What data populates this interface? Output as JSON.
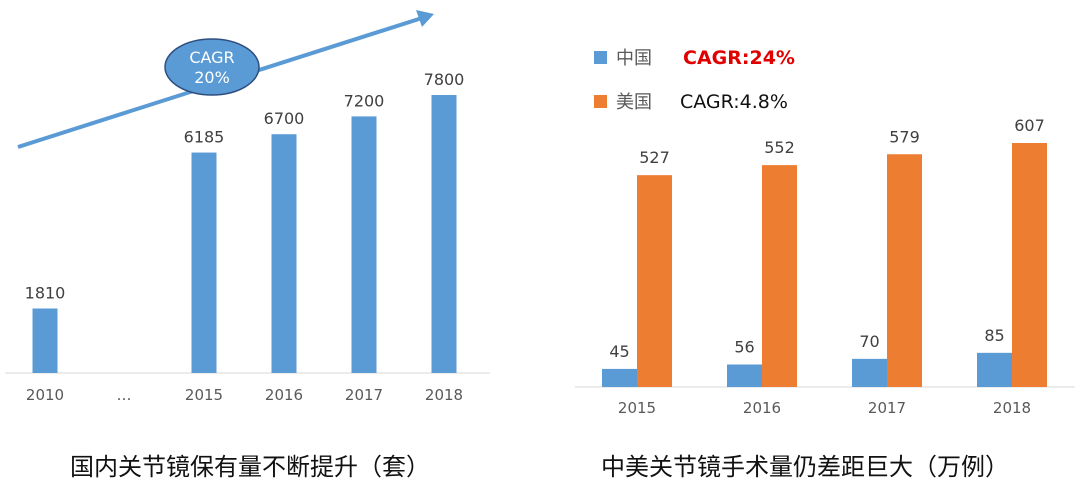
{
  "chart_data": [
    {
      "type": "bar",
      "title": "国内关节镜保有量不断提升（套）",
      "categories": [
        "2010",
        "…",
        "2015",
        "2016",
        "2017",
        "2018"
      ],
      "values": [
        1810,
        null,
        6185,
        6700,
        7200,
        7800
      ],
      "ylim": [
        0,
        8000
      ],
      "grid": false,
      "bar_color": "#5b9bd5",
      "annotation": {
        "line1": "CAGR",
        "line2": "20%"
      }
    },
    {
      "type": "bar",
      "title": "中美关节镜手术量仍差距巨大（万例）",
      "categories": [
        "2015",
        "2016",
        "2017",
        "2018"
      ],
      "series": [
        {
          "name": "中国",
          "values": [
            45,
            56,
            70,
            85
          ],
          "color": "#5b9bd5",
          "cagr": "CAGR:24%",
          "cagr_color": "#e00000"
        },
        {
          "name": "美国",
          "values": [
            527,
            552,
            579,
            607
          ],
          "color": "#ed7d31",
          "cagr": "CAGR:4.8%",
          "cagr_color": "#111111"
        }
      ],
      "ylim": [
        0,
        650
      ],
      "grid": false,
      "legend": "top-left"
    }
  ]
}
